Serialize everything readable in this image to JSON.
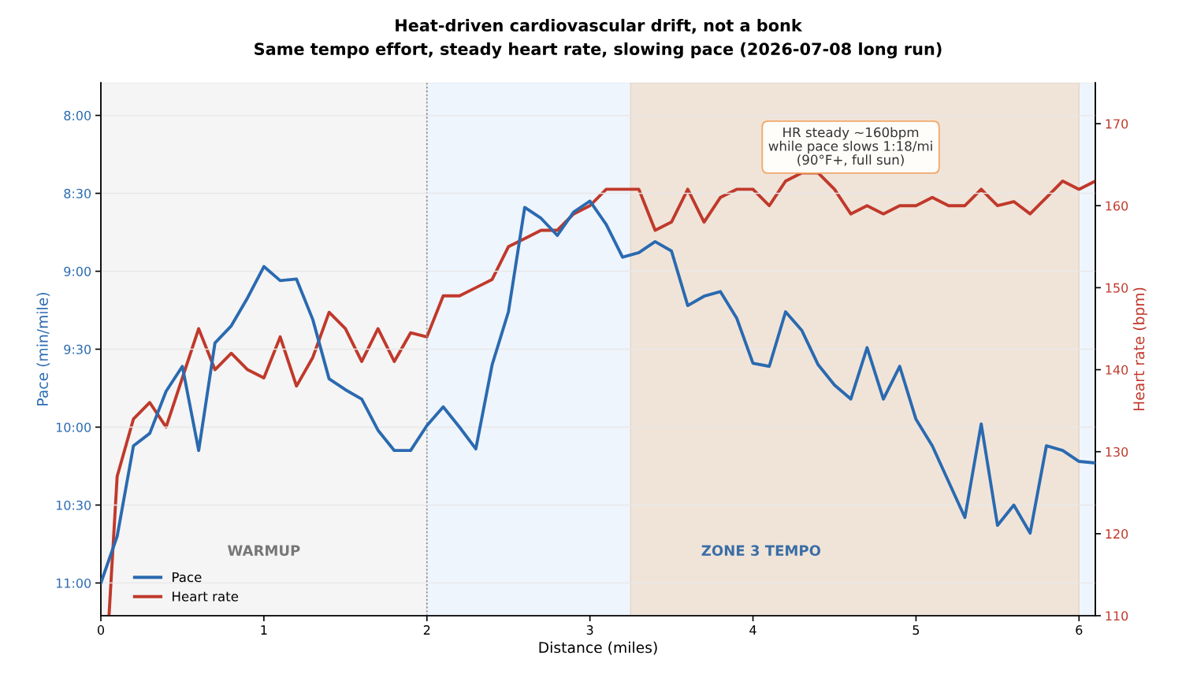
{
  "chart_data": {
    "type": "line",
    "title": "Heat-driven cardiovascular drift, not a bonk",
    "subtitle": "Same tempo effort, steady heart rate, slowing pace (2026-07-08 long run)",
    "xlabel": "Distance (miles)",
    "ylabel": "Pace (min/mile)",
    "y2label": "Heart rate (bpm)",
    "x": [
      0,
      0.1,
      0.2,
      0.3,
      0.4,
      0.5,
      0.6,
      0.7,
      0.8,
      0.9,
      1.0,
      1.1,
      1.2,
      1.3,
      1.4,
      1.5,
      1.6,
      1.7,
      1.8,
      1.9,
      2.0,
      2.1,
      2.2,
      2.3,
      2.4,
      2.5,
      2.6,
      2.7,
      2.8,
      2.9,
      3.0,
      3.1,
      3.2,
      3.3,
      3.4,
      3.5,
      3.6,
      3.7,
      3.8,
      3.9,
      4.0,
      4.1,
      4.2,
      4.3,
      4.4,
      4.5,
      4.6,
      4.7,
      4.8,
      4.9,
      5.0,
      5.1,
      5.2,
      5.3,
      5.4,
      5.5,
      5.6,
      5.7,
      5.8,
      5.9,
      6.0,
      6.1
    ],
    "series": [
      {
        "name": "Pace",
        "color": "#2a6ab0",
        "values": [
          11.0,
          10.7,
          10.12,
          10.04,
          9.77,
          9.61,
          10.15,
          9.46,
          9.35,
          9.17,
          8.97,
          9.06,
          9.05,
          9.31,
          9.69,
          9.76,
          9.82,
          10.02,
          10.15,
          10.15,
          9.99,
          9.87,
          10.0,
          10.14,
          9.6,
          9.26,
          8.59,
          8.66,
          8.77,
          8.62,
          8.55,
          8.7,
          8.91,
          8.88,
          8.81,
          8.87,
          9.22,
          9.16,
          9.13,
          9.3,
          9.59,
          9.61,
          9.26,
          9.38,
          9.6,
          9.73,
          9.82,
          9.49,
          9.82,
          9.61,
          9.95,
          10.12,
          10.35,
          10.58,
          9.98,
          10.63,
          10.5,
          10.68,
          10.12,
          10.15,
          10.22,
          10.23
        ]
      },
      {
        "name": "Heart rate",
        "color": "#c0392b",
        "axis": "y2",
        "x": [
          0.05,
          0.1,
          0.2,
          0.3,
          0.4,
          0.5,
          0.6,
          0.7,
          0.8,
          0.9,
          1.0,
          1.1,
          1.2,
          1.3,
          1.4,
          1.5,
          1.6,
          1.7,
          1.8,
          1.9,
          2.0,
          2.1,
          2.2,
          2.3,
          2.4,
          2.5,
          2.6,
          2.7,
          2.8,
          2.9,
          3.0,
          3.1,
          3.2,
          3.3,
          3.4,
          3.5,
          3.6,
          3.7,
          3.8,
          3.9,
          4.0,
          4.1,
          4.2,
          4.3,
          4.4,
          4.5,
          4.6,
          4.7,
          4.8,
          4.9,
          5.0,
          5.1,
          5.2,
          5.3,
          5.4,
          5.5,
          5.6,
          5.7,
          5.8,
          5.9,
          6.0,
          6.1
        ],
        "values": [
          110,
          127,
          134,
          136,
          133,
          139,
          145,
          140,
          142,
          140,
          139,
          144,
          138,
          141.5,
          147,
          145,
          141,
          145,
          141,
          144.5,
          144,
          149,
          149,
          150,
          151,
          155,
          156,
          157,
          157,
          159,
          160,
          162,
          162,
          162,
          157,
          158,
          162,
          158,
          161,
          162,
          162,
          160,
          163,
          164,
          164,
          162,
          159,
          160,
          159,
          160,
          160,
          161,
          160,
          160,
          162,
          160,
          160.5,
          159,
          161,
          163,
          162,
          163
        ]
      }
    ],
    "xlim": [
      0,
      6.1
    ],
    "xticks": [
      0,
      1,
      2,
      3,
      4,
      5,
      6
    ],
    "ylim": [
      11.21,
      7.79
    ],
    "yticks": [
      {
        "value": 8,
        "label": "8:00"
      },
      {
        "value": 8.5,
        "label": "8:30"
      },
      {
        "value": 9,
        "label": "9:00"
      },
      {
        "value": 9.5,
        "label": "9:30"
      },
      {
        "value": 10,
        "label": "10:00"
      },
      {
        "value": 10.5,
        "label": "10:30"
      },
      {
        "value": 11,
        "label": "11:00"
      }
    ],
    "y2lim": [
      110,
      175
    ],
    "y2ticks": [
      110,
      120,
      130,
      140,
      150,
      160,
      170
    ],
    "grid": "y",
    "legend": "bottom left",
    "bands": [
      {
        "axis": "x",
        "from": 0,
        "to": 2,
        "label": "WARMUP",
        "color": "#f5f5f5"
      },
      {
        "axis": "x",
        "from": 2,
        "to": 6.1,
        "label": "ZONE 3 TEMPO",
        "color": "#eff5fc"
      },
      {
        "axis": "x",
        "from": 3.25,
        "to": 6.0,
        "color": "#f0e4d9"
      }
    ],
    "ref_lines": [
      {
        "axis": "x",
        "value": 2,
        "color": "#888888",
        "line_style": "dotted"
      }
    ],
    "annotations": [
      "HR steady ~160bpm\nwhile pace slows 1:18/mi\n(90°F+, full sun)"
    ]
  }
}
